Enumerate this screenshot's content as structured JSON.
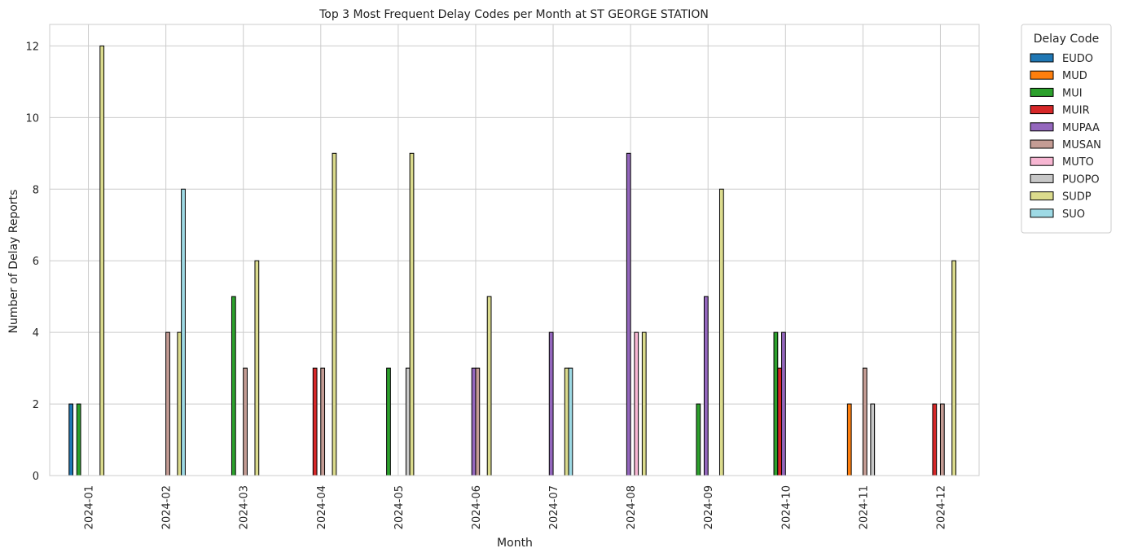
{
  "chart_data": {
    "type": "bar",
    "title": "Top 3 Most Frequent Delay Codes per Month at ST GEORGE STATION",
    "xlabel": "Month",
    "ylabel": "Number of Delay Reports",
    "categories": [
      "2024-01",
      "2024-02",
      "2024-03",
      "2024-04",
      "2024-05",
      "2024-06",
      "2024-07",
      "2024-08",
      "2024-09",
      "2024-10",
      "2024-11",
      "2024-12"
    ],
    "ylim": [
      0,
      12.6
    ],
    "yticks": [
      0,
      2,
      4,
      6,
      8,
      10,
      12
    ],
    "grid": true,
    "legend_title": "Delay Code",
    "legend_position": "outside-top-right",
    "series": [
      {
        "name": "EUDO",
        "color": "#1f77b4",
        "values": [
          2,
          0,
          0,
          0,
          0,
          0,
          0,
          0,
          0,
          0,
          0,
          0
        ]
      },
      {
        "name": "MUD",
        "color": "#ff7f0e",
        "values": [
          0,
          0,
          0,
          0,
          0,
          0,
          0,
          0,
          0,
          0,
          2,
          0
        ]
      },
      {
        "name": "MUI",
        "color": "#2ca02c",
        "values": [
          2,
          0,
          5,
          0,
          3,
          0,
          0,
          0,
          2,
          4,
          0,
          0
        ]
      },
      {
        "name": "MUIR",
        "color": "#d62728",
        "values": [
          0,
          0,
          0,
          3,
          0,
          0,
          0,
          0,
          0,
          3,
          0,
          2
        ]
      },
      {
        "name": "MUPAA",
        "color": "#9467bd",
        "values": [
          0,
          0,
          0,
          0,
          0,
          3,
          4,
          9,
          5,
          4,
          0,
          0
        ]
      },
      {
        "name": "MUSAN",
        "color": "#c49c94",
        "values": [
          0,
          4,
          3,
          3,
          0,
          3,
          0,
          0,
          0,
          0,
          3,
          2
        ]
      },
      {
        "name": "MUTO",
        "color": "#f7b6d2",
        "values": [
          0,
          0,
          0,
          0,
          0,
          0,
          0,
          4,
          0,
          0,
          0,
          0
        ]
      },
      {
        "name": "PUOPO",
        "color": "#c7c7c7",
        "values": [
          0,
          0,
          0,
          0,
          3,
          0,
          0,
          0,
          0,
          0,
          2,
          0
        ]
      },
      {
        "name": "SUDP",
        "color": "#dbdb8d",
        "values": [
          12,
          4,
          6,
          9,
          9,
          5,
          3,
          4,
          8,
          0,
          0,
          6
        ]
      },
      {
        "name": "SUO",
        "color": "#9edae5",
        "values": [
          0,
          8,
          0,
          0,
          0,
          0,
          3,
          0,
          0,
          0,
          0,
          0
        ]
      }
    ]
  }
}
